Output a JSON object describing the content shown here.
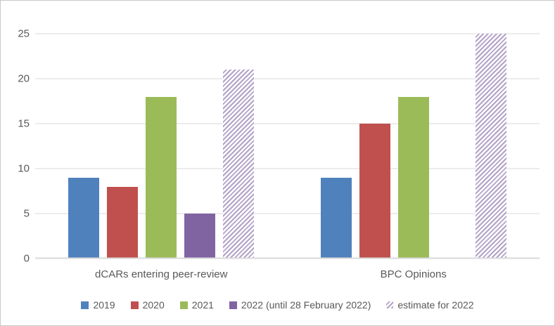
{
  "colors": {
    "gridline": "#D9D9D9",
    "axis_text": "#595959",
    "frame_border": "#C8C8C8",
    "hatch_stripe": "#B3A2C7"
  },
  "chart_data": {
    "type": "bar",
    "title": "",
    "xlabel": "",
    "ylabel": "",
    "categories": [
      "dCARs entering peer-review",
      "BPC Opinions"
    ],
    "series": [
      {
        "name": "2019",
        "color": "#4F81BD",
        "pattern": "solid",
        "values": [
          9,
          9
        ]
      },
      {
        "name": "2020",
        "color": "#C0504D",
        "pattern": "solid",
        "values": [
          8,
          15
        ]
      },
      {
        "name": "2021",
        "color": "#9BBB59",
        "pattern": "solid",
        "values": [
          18,
          18
        ]
      },
      {
        "name": "2022 (until 28 February 2022)",
        "color": "#8064A2",
        "pattern": "solid",
        "values": [
          5,
          0
        ]
      },
      {
        "name": "estimate for 2022",
        "color": "#B3A2C7",
        "pattern": "diagonal-hatch",
        "values": [
          21,
          25
        ]
      }
    ],
    "ylim": [
      0,
      25
    ],
    "ytick_step": 5,
    "ytick_labels": [
      "0",
      "5",
      "10",
      "15",
      "20",
      "25"
    ],
    "grid": true,
    "legend_position": "bottom"
  }
}
